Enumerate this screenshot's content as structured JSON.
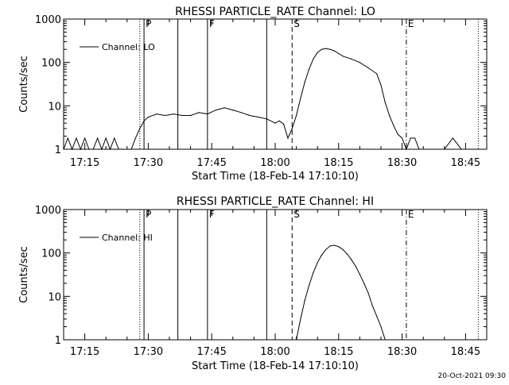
{
  "footer": {
    "timestamp": "20-Oct-2021 09:30"
  },
  "chart_data": [
    {
      "type": "line",
      "title": "RHESSI PARTICLE_RATE Channel: LO",
      "xlabel": "Start Time (18-Feb-14 17:10:10)",
      "ylabel": "Counts/sec",
      "yscale": "log",
      "ylim": [
        1,
        1000
      ],
      "xlim": [
        "17:10",
        "18:50"
      ],
      "xticks": [
        "17:15",
        "17:30",
        "17:45",
        "18:00",
        "18:15",
        "18:30",
        "18:45"
      ],
      "yticks": [
        "1",
        "10",
        "100",
        "1000"
      ],
      "legend": "top-left",
      "series": [
        {
          "name": "Channel: LO",
          "x": [
            "17:10",
            "17:11",
            "17:12",
            "17:13",
            "17:14",
            "17:15",
            "17:16",
            "17:17",
            "17:18",
            "17:19",
            "17:20",
            "17:21",
            "17:22",
            "17:23",
            "17:24",
            "17:25",
            "17:26",
            "17:27",
            "17:28",
            "17:29",
            "17:30",
            "17:32",
            "17:34",
            "17:36",
            "17:38",
            "17:40",
            "17:42",
            "17:44",
            "17:46",
            "17:48",
            "17:50",
            "17:52",
            "17:54",
            "17:56",
            "17:58",
            "18:00",
            "18:01",
            "18:02",
            "18:03",
            "18:04",
            "18:05",
            "18:06",
            "18:07",
            "18:08",
            "18:09",
            "18:10",
            "18:11",
            "18:12",
            "18:13",
            "18:14",
            "18:15",
            "18:16",
            "18:18",
            "18:20",
            "18:22",
            "18:24",
            "18:25",
            "18:26",
            "18:27",
            "18:28",
            "18:29",
            "18:30",
            "18:31",
            "18:32",
            "18:33",
            "18:34",
            "18:36",
            "18:38",
            "18:40",
            "18:42",
            "18:44",
            "18:46",
            "18:48"
          ],
          "y": [
            1,
            1.8,
            1,
            1.8,
            1,
            1.8,
            1,
            1,
            1.8,
            1,
            1.8,
            1,
            1.8,
            1,
            1,
            1,
            1,
            1.8,
            3,
            4.5,
            5.5,
            6.5,
            6,
            6.5,
            6,
            6,
            7,
            6.5,
            8,
            9,
            8,
            7,
            6,
            5.5,
            5,
            4,
            4.5,
            3.8,
            1.8,
            3,
            6,
            15,
            35,
            70,
            120,
            170,
            200,
            210,
            200,
            185,
            160,
            140,
            120,
            100,
            75,
            55,
            30,
            12,
            6,
            3.5,
            2.2,
            1.8,
            1,
            1.8,
            1.8,
            1,
            1,
            1,
            1,
            1.8,
            1,
            1,
            1
          ]
        }
      ],
      "markers": [
        {
          "label": "",
          "time": "17:28",
          "style": "dotted"
        },
        {
          "label": "P",
          "time": "17:29",
          "style": "solid"
        },
        {
          "label": "",
          "time": "17:37",
          "style": "solid"
        },
        {
          "label": "F",
          "time": "17:44",
          "style": "solid"
        },
        {
          "label": "",
          "time": "17:58",
          "style": "solid"
        },
        {
          "label": "S",
          "time": "18:04",
          "style": "dashed"
        },
        {
          "label": "E",
          "time": "18:31",
          "style": "dashdot"
        },
        {
          "label": "",
          "time": "18:48",
          "style": "dotted"
        }
      ]
    },
    {
      "type": "line",
      "title": "RHESSI PARTICLE_RATE Channel: HI",
      "xlabel": "Start Time (18-Feb-14 17:10:10)",
      "ylabel": "Counts/sec",
      "yscale": "log",
      "ylim": [
        1,
        1000
      ],
      "xlim": [
        "17:10",
        "18:50"
      ],
      "xticks": [
        "17:15",
        "17:30",
        "17:45",
        "18:00",
        "18:15",
        "18:30",
        "18:45"
      ],
      "yticks": [
        "1",
        "10",
        "100",
        "1000"
      ],
      "legend": "top-left",
      "series": [
        {
          "name": "Channel: HI",
          "x": [
            "18:05",
            "18:06",
            "18:07",
            "18:08",
            "18:09",
            "18:10",
            "18:11",
            "18:12",
            "18:13",
            "18:14",
            "18:15",
            "18:16",
            "18:17",
            "18:18",
            "18:19",
            "18:20",
            "18:21",
            "18:22",
            "18:23",
            "18:24",
            "18:25",
            "18:26"
          ],
          "y": [
            1,
            3,
            8,
            18,
            35,
            60,
            90,
            120,
            145,
            150,
            140,
            120,
            95,
            70,
            50,
            32,
            20,
            12,
            6,
            3.5,
            2,
            1
          ]
        }
      ],
      "markers": [
        {
          "label": "",
          "time": "17:28",
          "style": "dotted"
        },
        {
          "label": "P",
          "time": "17:29",
          "style": "solid"
        },
        {
          "label": "",
          "time": "17:37",
          "style": "solid"
        },
        {
          "label": "F",
          "time": "17:44",
          "style": "solid"
        },
        {
          "label": "",
          "time": "17:58",
          "style": "solid"
        },
        {
          "label": "S",
          "time": "18:04",
          "style": "dashed"
        },
        {
          "label": "E",
          "time": "18:31",
          "style": "dashdot"
        },
        {
          "label": "",
          "time": "18:48",
          "style": "dotted"
        }
      ]
    }
  ]
}
